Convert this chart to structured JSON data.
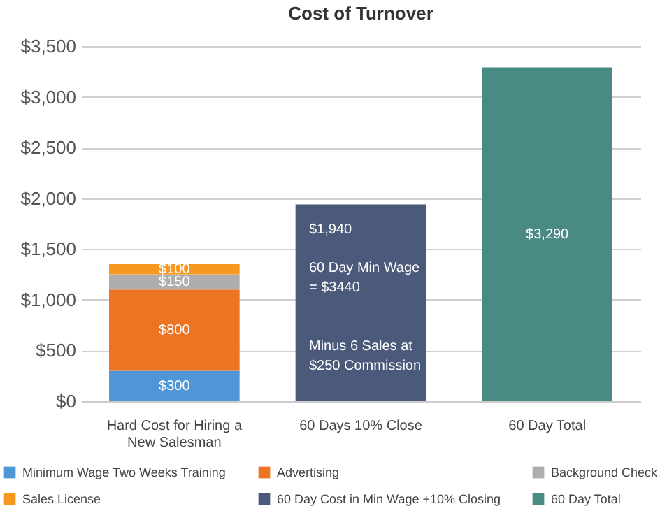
{
  "chart_data": {
    "type": "bar",
    "title": "Cost of Turnover",
    "stacked": true,
    "categories": [
      "Hard Cost for Hiring a New Salesman",
      "60 Days 10% Close",
      "60 Day Total"
    ],
    "series": [
      {
        "name": "Minimum Wage Two Weeks Training",
        "color": "#4f96d6",
        "values": [
          300,
          null,
          null
        ],
        "value_labels": [
          "$300",
          null,
          null
        ]
      },
      {
        "name": "Advertising",
        "color": "#ed7422",
        "values": [
          800,
          null,
          null
        ],
        "value_labels": [
          "$800",
          null,
          null
        ]
      },
      {
        "name": "Background Check",
        "color": "#aeaeae",
        "values": [
          150,
          null,
          null
        ],
        "value_labels": [
          "$150",
          null,
          null
        ]
      },
      {
        "name": "Sales License",
        "color": "#f7991e",
        "values": [
          100,
          null,
          null
        ],
        "value_labels": [
          "$100",
          null,
          null
        ]
      },
      {
        "name": "60 Day Cost in Min Wage +10% Closing",
        "color": "#4b5a7a",
        "values": [
          null,
          1940,
          null
        ],
        "value_labels": [
          null,
          "$1,940",
          null
        ]
      },
      {
        "name": "60 Day Total",
        "color": "#4a8a84",
        "values": [
          null,
          null,
          3290
        ],
        "value_labels": [
          null,
          null,
          "$3,290"
        ]
      }
    ],
    "annotations": [
      "60 Day Min Wage = $3440",
      "Minus 6 Sales at $250 Commission"
    ],
    "ylim": [
      0,
      3500
    ],
    "yticks": [
      {
        "value": 0,
        "label": "$0"
      },
      {
        "value": 500,
        "label": "$500"
      },
      {
        "value": 1000,
        "label": "$1,000"
      },
      {
        "value": 1500,
        "label": "$1,500"
      },
      {
        "value": 2000,
        "label": "$2,000"
      },
      {
        "value": 2500,
        "label": "$2,500"
      },
      {
        "value": 3000,
        "label": "$3,000"
      },
      {
        "value": 3500,
        "label": "$3,500"
      }
    ],
    "grid": "y",
    "legend": "bottom"
  }
}
